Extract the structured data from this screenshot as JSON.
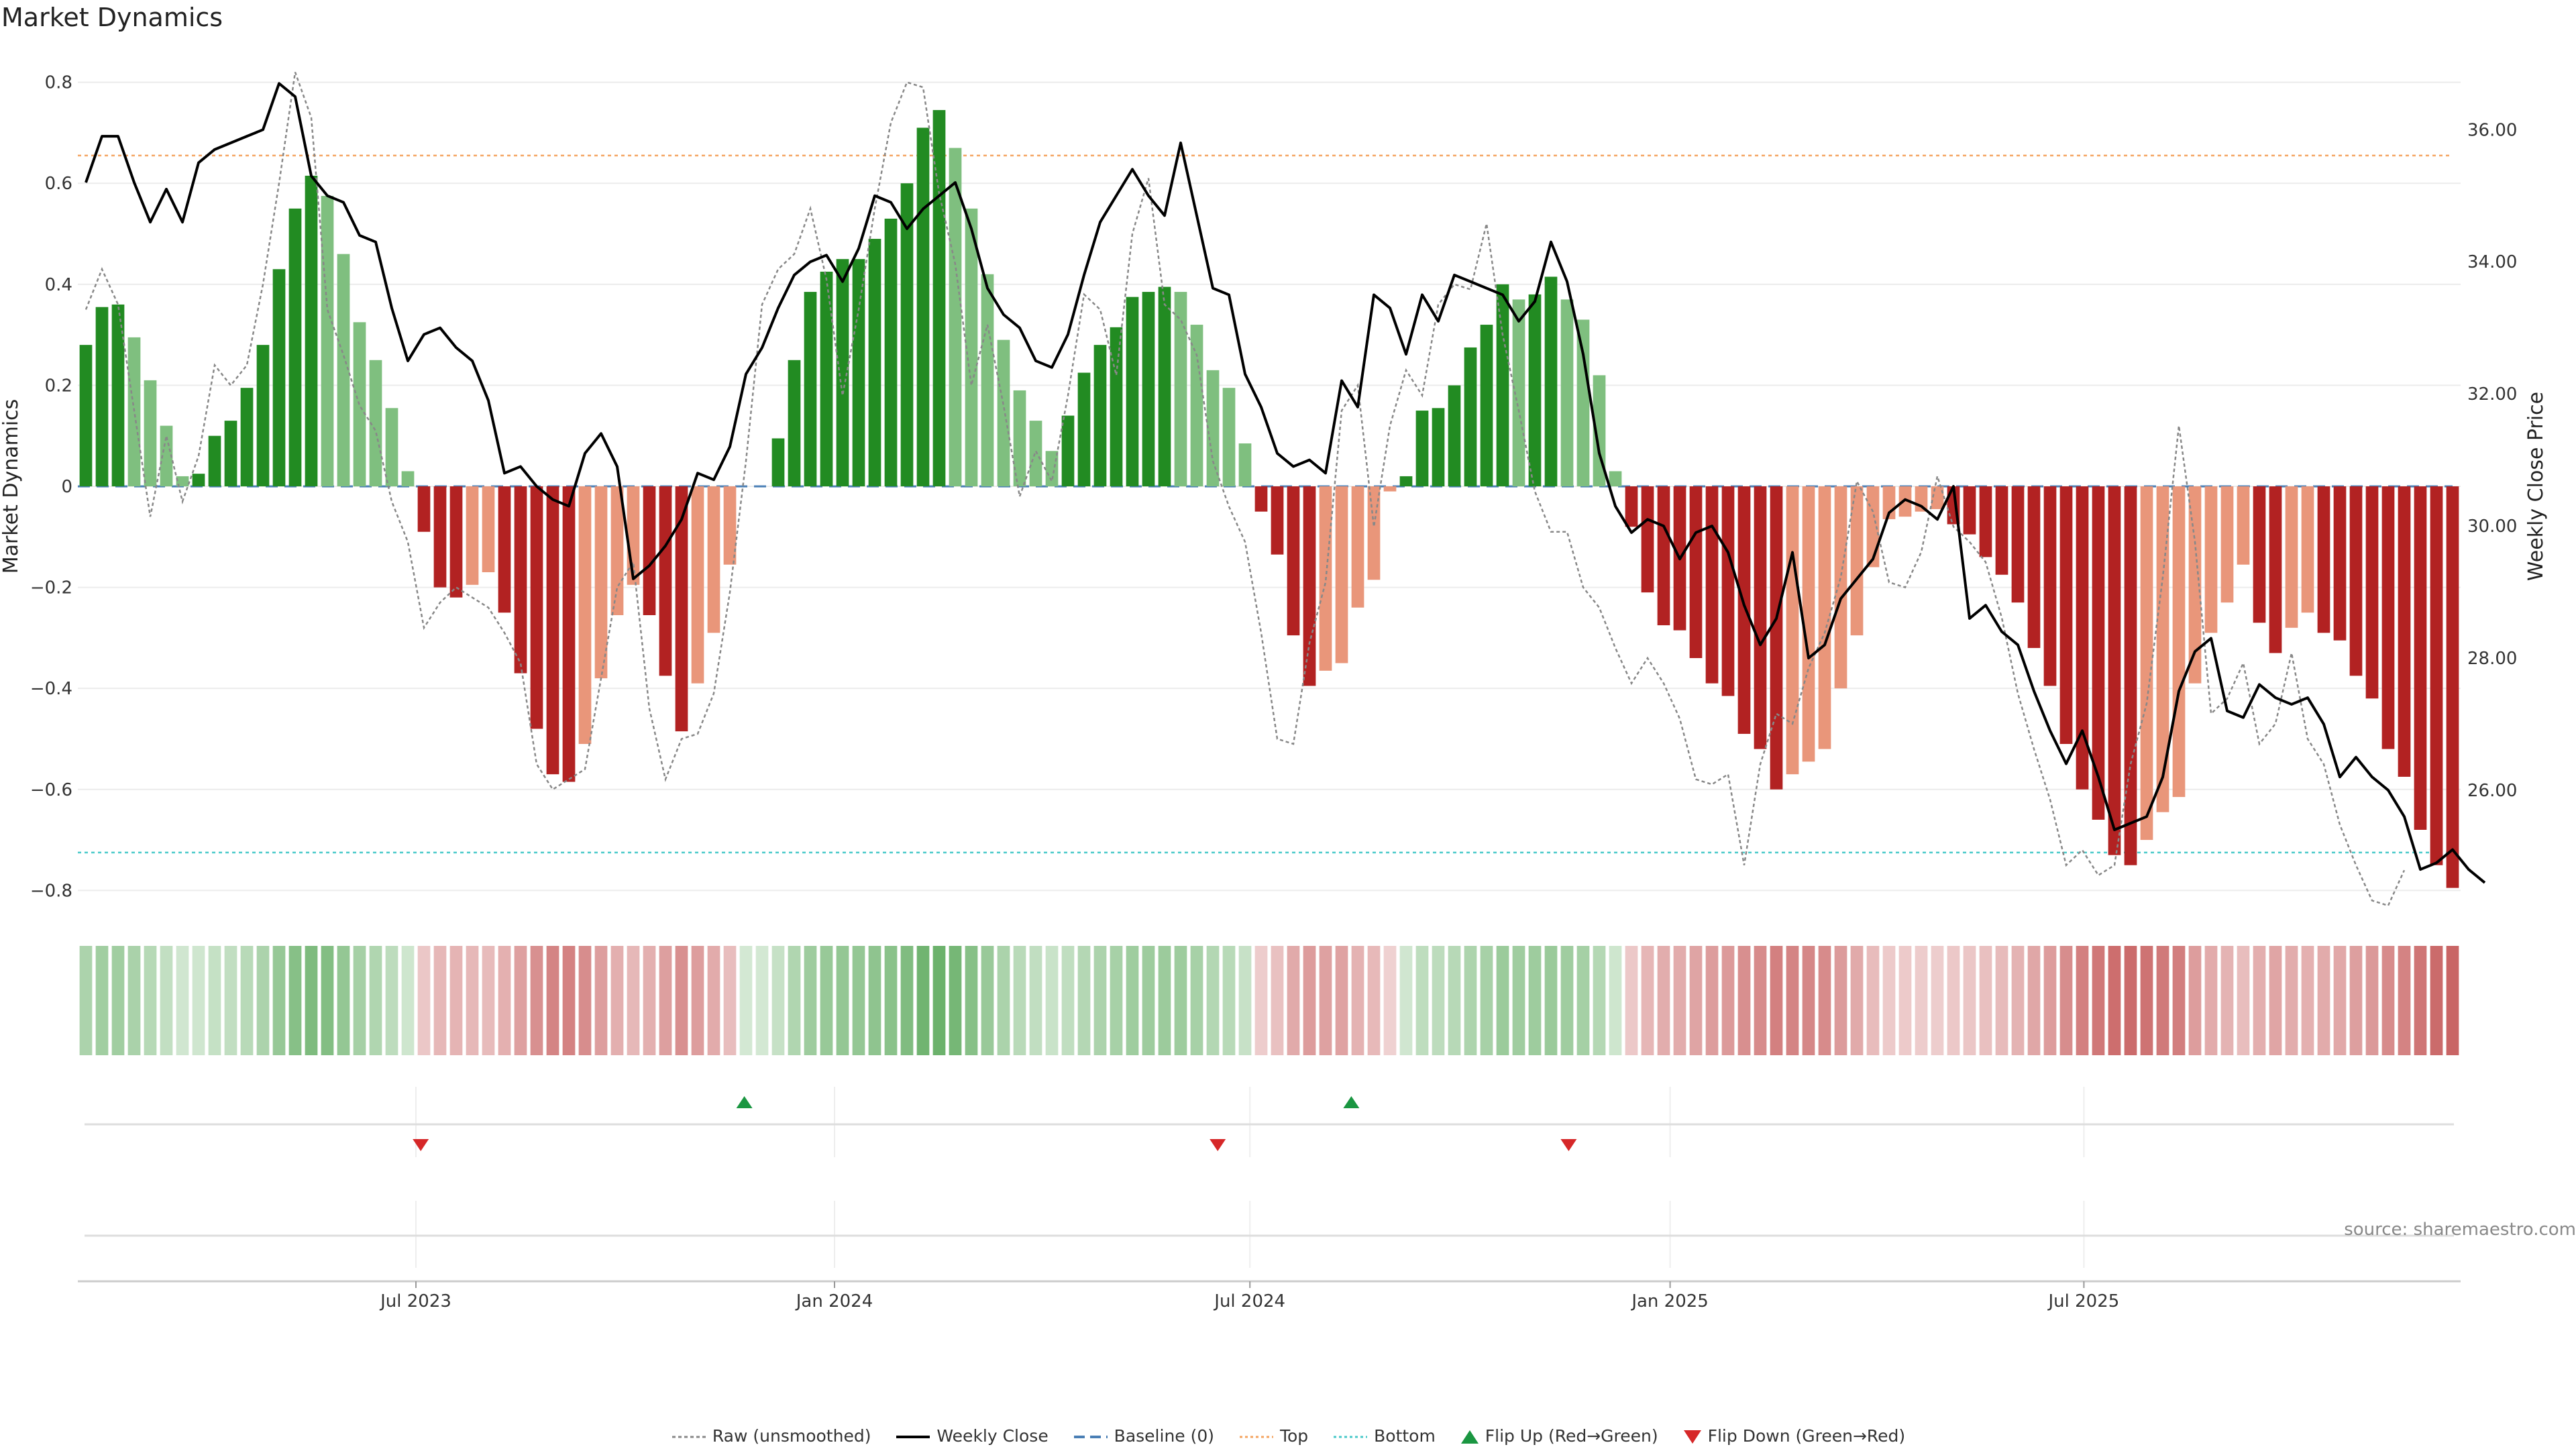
{
  "title": "Market Dynamics",
  "source": "source: sharemaestro.com",
  "legend": [
    {
      "key": "raw",
      "label": "Raw (unsmoothed)"
    },
    {
      "key": "close",
      "label": "Weekly Close"
    },
    {
      "key": "baseline",
      "label": "Baseline (0)"
    },
    {
      "key": "top",
      "label": "Top"
    },
    {
      "key": "bottom",
      "label": "Bottom"
    },
    {
      "key": "flip_up",
      "label": "Flip Up (Red→Green)"
    },
    {
      "key": "flip_down",
      "label": "Flip Down (Green→Red)"
    }
  ],
  "colors": {
    "green_strong": "#228b22",
    "green_light": "#7fbf7f",
    "red_strong": "#b22222",
    "red_light": "#e9967a",
    "raw": "#888888",
    "close": "#000000",
    "baseline": "#4a7fb5",
    "top": "#f4a460",
    "bottom": "#48c9c9",
    "flip_up": "#1a9641",
    "flip_down": "#d62728"
  },
  "chart_data": {
    "type": "bar",
    "ylabel_left": "Market Dynamics",
    "ylabel_right": "Weekly Close Price",
    "y_left_ticks": [
      0.8,
      0.6,
      0.4,
      0.2,
      0,
      -0.2,
      -0.4,
      -0.6,
      -0.8
    ],
    "y_left_tick_labels": [
      "0.8",
      "0.6",
      "0.4",
      "0.2",
      "0",
      "−0.2",
      "−0.4",
      "−0.6",
      "−0.8"
    ],
    "y_left_range": [
      -0.85,
      0.85
    ],
    "y_right_ticks": [
      36.0,
      34.0,
      32.0,
      30.0,
      28.0,
      26.0
    ],
    "y_right_tick_labels": [
      "36.00",
      "34.00",
      "32.00",
      "30.00",
      "28.00",
      "26.00"
    ],
    "y_right_range": [
      24.1,
      37.1
    ],
    "top_level": 0.655,
    "bottom_level": -0.725,
    "x_tick_labels": [
      "Jul 2023",
      "Jan 2024",
      "Jul 2024",
      "Jan 2025",
      "Jul 2025"
    ],
    "x_tick_index": [
      20.5,
      46.5,
      72.3,
      98.4,
      124.1
    ],
    "flip_up_index": [
      40.9,
      78.6
    ],
    "flip_down_index": [
      20.8,
      70.3,
      92.1
    ],
    "dynamics": [
      0.28,
      0.355,
      0.36,
      0.295,
      0.21,
      0.12,
      0.02,
      0.025,
      0.1,
      0.13,
      0.195,
      0.28,
      0.43,
      0.55,
      0.615,
      0.575,
      0.46,
      0.325,
      0.25,
      0.155,
      0.03,
      -0.09,
      -0.2,
      -0.22,
      -0.195,
      -0.17,
      -0.25,
      -0.37,
      -0.48,
      -0.57,
      -0.585,
      -0.51,
      -0.38,
      -0.255,
      -0.195,
      -0.255,
      -0.375,
      -0.485,
      -0.39,
      -0.29,
      -0.155,
      0.0,
      0.0,
      0.095,
      0.25,
      0.385,
      0.425,
      0.45,
      0.45,
      0.49,
      0.53,
      0.6,
      0.71,
      0.745,
      0.67,
      0.55,
      0.42,
      0.29,
      0.19,
      0.13,
      0.07,
      0.14,
      0.225,
      0.28,
      0.315,
      0.375,
      0.385,
      0.395,
      0.385,
      0.32,
      0.23,
      0.195,
      0.085,
      -0.05,
      -0.135,
      -0.295,
      -0.395,
      -0.365,
      -0.35,
      -0.24,
      -0.185,
      -0.01,
      0.02,
      0.15,
      0.155,
      0.2,
      0.275,
      0.32,
      0.4,
      0.37,
      0.38,
      0.415,
      0.37,
      0.33,
      0.22,
      0.03,
      -0.08,
      -0.21,
      -0.275,
      -0.285,
      -0.34,
      -0.39,
      -0.415,
      -0.49,
      -0.52,
      -0.6,
      -0.57,
      -0.545,
      -0.52,
      -0.4,
      -0.295,
      -0.16,
      -0.065,
      -0.06,
      -0.05,
      -0.045,
      -0.075,
      -0.095,
      -0.14,
      -0.175,
      -0.23,
      -0.32,
      -0.395,
      -0.51,
      -0.6,
      -0.66,
      -0.73,
      -0.75,
      -0.7,
      -0.645,
      -0.615,
      -0.39,
      -0.29,
      -0.23,
      -0.155,
      -0.27,
      -0.33,
      -0.28,
      -0.25,
      -0.29,
      -0.305,
      -0.375,
      -0.42,
      -0.52,
      -0.575,
      -0.68,
      -0.75,
      -0.795
    ],
    "raw": [
      0.35,
      0.43,
      0.36,
      0.15,
      -0.06,
      0.1,
      -0.03,
      0.06,
      0.24,
      0.2,
      0.24,
      0.4,
      0.6,
      0.82,
      0.73,
      0.35,
      0.26,
      0.16,
      0.11,
      -0.03,
      -0.11,
      -0.28,
      -0.23,
      -0.2,
      -0.22,
      -0.24,
      -0.29,
      -0.35,
      -0.55,
      -0.6,
      -0.58,
      -0.56,
      -0.38,
      -0.2,
      -0.15,
      -0.44,
      -0.58,
      -0.5,
      -0.49,
      -0.41,
      -0.21,
      0.05,
      0.36,
      0.43,
      0.46,
      0.55,
      0.41,
      0.18,
      0.35,
      0.55,
      0.72,
      0.8,
      0.79,
      0.58,
      0.44,
      0.2,
      0.32,
      0.16,
      -0.02,
      0.07,
      0.01,
      0.18,
      0.38,
      0.35,
      0.22,
      0.5,
      0.61,
      0.36,
      0.33,
      0.26,
      0.05,
      -0.04,
      -0.11,
      -0.29,
      -0.5,
      -0.51,
      -0.31,
      -0.19,
      0.15,
      0.2,
      -0.08,
      0.12,
      0.23,
      0.18,
      0.36,
      0.4,
      0.39,
      0.52,
      0.3,
      0.15,
      -0.01,
      -0.09,
      -0.09,
      -0.2,
      -0.24,
      -0.32,
      -0.39,
      -0.34,
      -0.39,
      -0.46,
      -0.58,
      -0.59,
      -0.57,
      -0.75,
      -0.55,
      -0.45,
      -0.47,
      -0.36,
      -0.29,
      -0.18,
      0.01,
      -0.05,
      -0.19,
      -0.2,
      -0.13,
      0.02,
      -0.08,
      -0.11,
      -0.15,
      -0.26,
      -0.41,
      -0.52,
      -0.62,
      -0.75,
      -0.72,
      -0.77,
      -0.75,
      -0.55,
      -0.43,
      -0.18,
      0.12,
      -0.11,
      -0.45,
      -0.42,
      -0.35,
      -0.51,
      -0.47,
      -0.33,
      -0.5,
      -0.55,
      -0.67,
      -0.75,
      -0.82,
      -0.83,
      -0.76
    ],
    "weekly_close": [
      35.2,
      35.9,
      35.9,
      35.2,
      34.6,
      35.1,
      34.6,
      35.5,
      35.7,
      35.8,
      35.9,
      36.0,
      36.7,
      36.5,
      35.3,
      35.0,
      34.9,
      34.4,
      34.3,
      33.3,
      32.5,
      32.9,
      33.0,
      32.7,
      32.5,
      31.9,
      30.8,
      30.9,
      30.6,
      30.4,
      30.3,
      31.1,
      31.4,
      30.9,
      29.2,
      29.4,
      29.7,
      30.1,
      30.8,
      30.7,
      31.2,
      32.3,
      32.7,
      33.3,
      33.8,
      34.0,
      34.1,
      33.7,
      34.2,
      35.0,
      34.9,
      34.5,
      34.8,
      35.0,
      35.2,
      34.5,
      33.6,
      33.2,
      33.0,
      32.5,
      32.4,
      32.9,
      33.8,
      34.6,
      35.0,
      35.4,
      35.0,
      34.7,
      35.8,
      34.7,
      33.6,
      33.5,
      32.3,
      31.8,
      31.1,
      30.9,
      31.0,
      30.8,
      32.2,
      31.8,
      33.5,
      33.3,
      32.6,
      33.5,
      33.1,
      33.8,
      33.7,
      33.6,
      33.5,
      33.1,
      33.4,
      34.3,
      33.7,
      32.6,
      31.1,
      30.3,
      29.9,
      30.1,
      30.0,
      29.5,
      29.9,
      30.0,
      29.6,
      28.8,
      28.2,
      28.6,
      29.6,
      28.0,
      28.2,
      28.9,
      29.2,
      29.5,
      30.2,
      30.4,
      30.3,
      30.1,
      30.6,
      28.6,
      28.8,
      28.4,
      28.2,
      27.5,
      26.9,
      26.4,
      26.9,
      26.2,
      25.4,
      25.5,
      25.6,
      26.2,
      27.5,
      28.1,
      28.3,
      27.2,
      27.1,
      27.6,
      27.4,
      27.3,
      27.4,
      27.0,
      26.2,
      26.5,
      26.2,
      26.0,
      25.6,
      24.8,
      24.9,
      25.1,
      24.8,
      24.6
    ]
  }
}
